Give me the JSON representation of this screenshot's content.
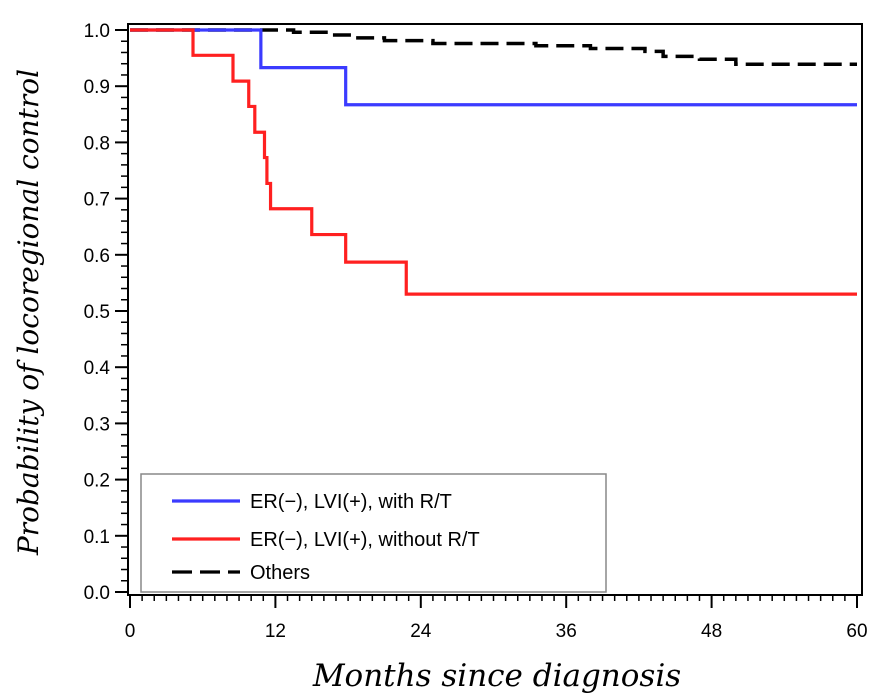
{
  "chart_data": {
    "type": "line",
    "step": true,
    "xlabel": "Months since diagnosis",
    "ylabel": "Probability of locoregional control",
    "xlim": [
      0,
      60
    ],
    "ylim": [
      0,
      1
    ],
    "xticks": [
      0,
      12,
      24,
      36,
      48,
      60
    ],
    "yticks": [
      0.0,
      0.1,
      0.2,
      0.3,
      0.4,
      0.5,
      0.6,
      0.7,
      0.8,
      0.9,
      1.0
    ],
    "ytick_labels": [
      "0.0",
      "0.1",
      "0.2",
      "0.3",
      "0.4",
      "0.5",
      "0.6",
      "0.7",
      "0.8",
      "0.9",
      "1.0"
    ],
    "grid": false,
    "legend_position": "bottom-left",
    "series": [
      {
        "name": "ER(−), LVI(+), with R/T",
        "color": "#3b3bff",
        "dash": "solid",
        "x": [
          0,
          10.8,
          17.8,
          60
        ],
        "y": [
          1.0,
          0.933,
          0.867,
          0.867
        ]
      },
      {
        "name": "ER(−), LVI(+), without R/T",
        "color": "#ff2020",
        "dash": "solid",
        "x": [
          0,
          5.2,
          8.5,
          9.8,
          10.3,
          11.1,
          11.3,
          11.6,
          15.0,
          17.8,
          22.8,
          60
        ],
        "y": [
          1.0,
          0.955,
          0.909,
          0.864,
          0.818,
          0.773,
          0.727,
          0.682,
          0.636,
          0.587,
          0.53,
          0.53
        ]
      },
      {
        "name": "Others",
        "color": "#000000",
        "dash": "dashed",
        "x": [
          0,
          13.5,
          16.5,
          18.5,
          21.0,
          25.0,
          33.5,
          38.0,
          42.5,
          44.0,
          47.0,
          50.0,
          60
        ],
        "y": [
          1.0,
          0.996,
          0.991,
          0.986,
          0.981,
          0.976,
          0.972,
          0.967,
          0.962,
          0.953,
          0.948,
          0.939,
          0.939
        ]
      }
    ]
  }
}
